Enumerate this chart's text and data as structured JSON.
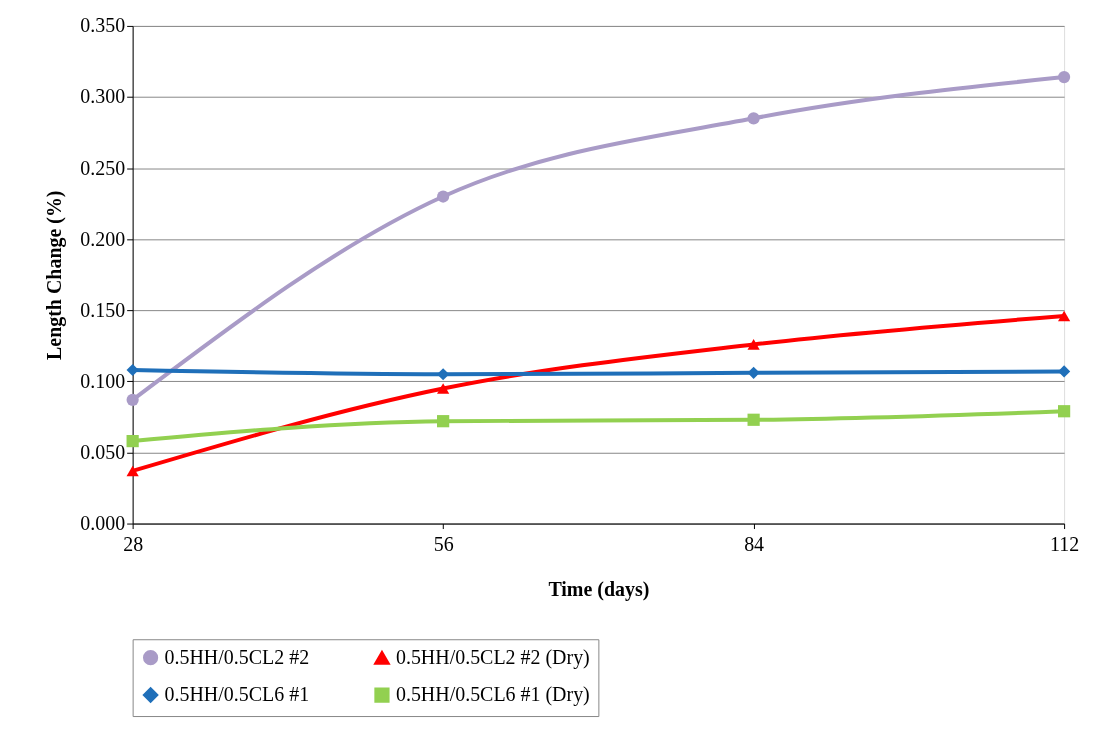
{
  "chart_data": {
    "type": "line",
    "xlabel": "Time (days)",
    "ylabel": "Length Change (%)",
    "x": [
      28,
      56,
      84,
      112
    ],
    "series": [
      {
        "name": "0.5HH/0.5CL2 #2",
        "color": "#a99bc7",
        "marker": "circle",
        "values": [
          0.087,
          0.23,
          0.285,
          0.314
        ]
      },
      {
        "name": "0.5HH/0.5CL2 #2 (Dry)",
        "color": "#ff0000",
        "marker": "triangle",
        "values": [
          0.037,
          0.095,
          0.126,
          0.146
        ]
      },
      {
        "name": "0.5HH/0.5CL6 #1",
        "color": "#1f6fb9",
        "marker": "diamond",
        "values": [
          0.108,
          0.105,
          0.106,
          0.107
        ]
      },
      {
        "name": "0.5HH/0.5CL6 #1 (Dry)",
        "color": "#92d050",
        "marker": "square",
        "values": [
          0.058,
          0.072,
          0.073,
          0.079
        ]
      }
    ],
    "xlim": [
      28,
      112
    ],
    "xticks": [
      28,
      56,
      84,
      112
    ],
    "ylim": [
      0,
      0.35
    ],
    "yticks": [
      {
        "value": 0,
        "label": "0.000"
      },
      {
        "value": 0.05,
        "label": "0.050"
      },
      {
        "value": 0.1,
        "label": "0.100"
      },
      {
        "value": 0.15,
        "label": "0.150"
      },
      {
        "value": 0.2,
        "label": "0.200"
      },
      {
        "value": 0.25,
        "label": "0.250"
      },
      {
        "value": 0.3,
        "label": "0.300"
      },
      {
        "value": 0.35,
        "label": "0.350"
      }
    ],
    "grid": "y",
    "legend": "bottom",
    "line_style": "solid"
  }
}
